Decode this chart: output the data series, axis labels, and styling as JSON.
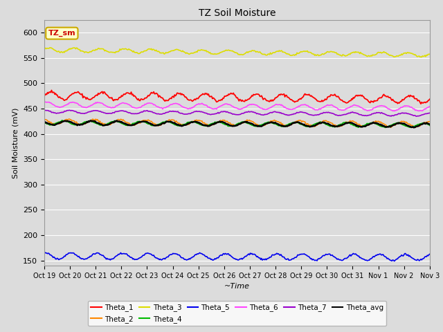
{
  "title": "TZ Soil Moisture",
  "ylabel": "Soil Moisture (mV)",
  "xlabel": "~Time",
  "ylim": [
    140,
    625
  ],
  "yticks": [
    150,
    200,
    250,
    300,
    350,
    400,
    450,
    500,
    550,
    600
  ],
  "bg_color": "#dcdcdc",
  "fig_bg": "#dcdcdc",
  "x_tick_labels": [
    "Oct 19",
    "Oct 20",
    "Oct 21",
    "Oct 22",
    "Oct 23",
    "Oct 24",
    "Oct 25",
    "Oct 26",
    "Oct 27",
    "Oct 28",
    "Oct 29",
    "Oct 30",
    "Oct 31",
    "Nov 1",
    "Nov 2",
    "Nov 3"
  ],
  "n_points": 480,
  "series_order": [
    "Theta_1",
    "Theta_2",
    "Theta_3",
    "Theta_4",
    "Theta_5",
    "Theta_6",
    "Theta_7",
    "Theta_avg"
  ],
  "series": {
    "Theta_1": {
      "color": "#ff0000",
      "base": 476,
      "amplitude": 7,
      "trend": -8,
      "noise": 1.2,
      "phase": 0.0
    },
    "Theta_2": {
      "color": "#ff8800",
      "base": 424,
      "amplitude": 5,
      "trend": -5,
      "noise": 0.8,
      "phase": 0.3
    },
    "Theta_3": {
      "color": "#dddd00",
      "base": 566,
      "amplitude": 4,
      "trend": -10,
      "noise": 0.8,
      "phase": 0.1
    },
    "Theta_4": {
      "color": "#00bb00",
      "base": 422,
      "amplitude": 4,
      "trend": -5,
      "noise": 0.5,
      "phase": 0.5
    },
    "Theta_5": {
      "color": "#0000ee",
      "base": 159,
      "amplitude": 6,
      "trend": -3,
      "noise": 0.8,
      "phase": 0.2
    },
    "Theta_6": {
      "color": "#ff44ff",
      "base": 458,
      "amplitude": 5,
      "trend": -8,
      "noise": 0.5,
      "phase": 0.15
    },
    "Theta_7": {
      "color": "#9900cc",
      "base": 444,
      "amplitude": 3,
      "trend": -6,
      "noise": 0.4,
      "phase": 0.25
    },
    "Theta_avg": {
      "color": "#000000",
      "base": 422,
      "amplitude": 4,
      "trend": -5,
      "noise": 0.5,
      "phase": 0.4
    }
  },
  "legend_box_label": "TZ_sm",
  "legend_box_color": "#ffffcc",
  "legend_box_border": "#ccaa00",
  "legend_order": [
    "Theta_1",
    "Theta_2",
    "Theta_3",
    "Theta_4",
    "Theta_5",
    "Theta_6",
    "Theta_7",
    "Theta_avg"
  ]
}
